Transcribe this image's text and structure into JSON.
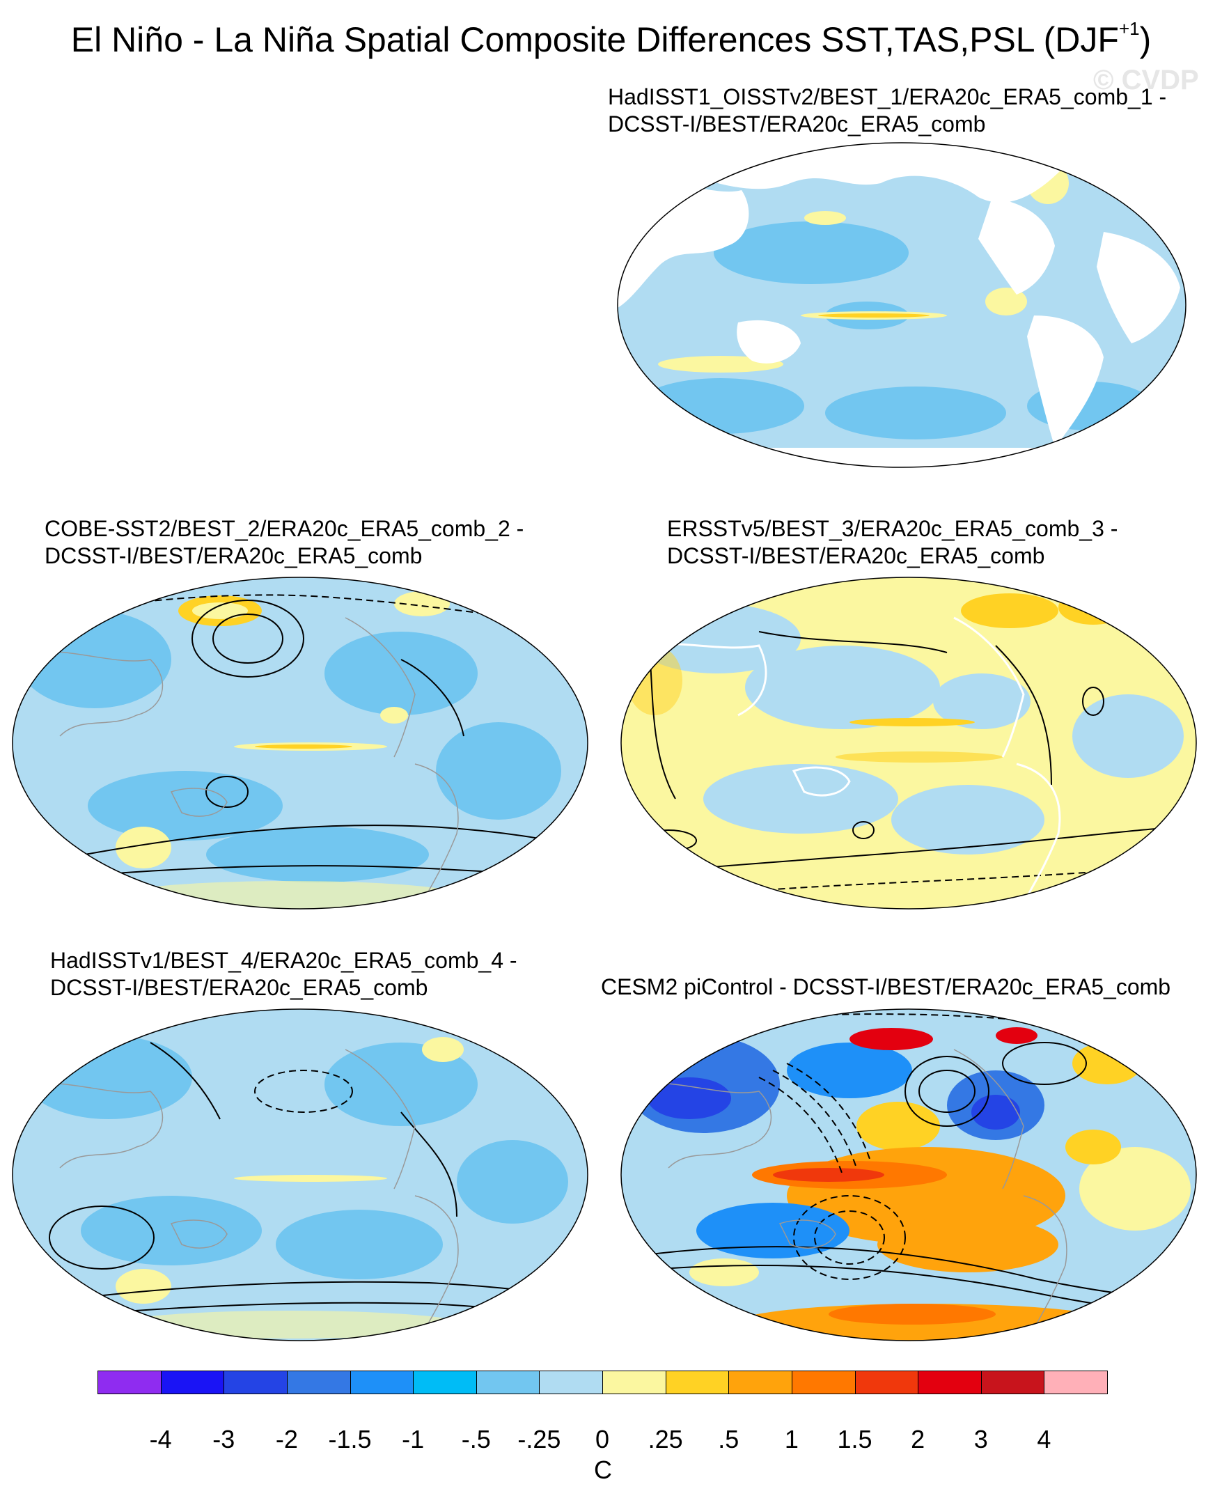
{
  "title": {
    "main": "El Niño - La Niña Spatial Composite Differences SST,TAS,PSL (DJF",
    "superscript": "+1",
    "close": ")"
  },
  "watermark": "© CVDP",
  "panels": [
    {
      "id": "p1",
      "title_line1": "HadISST1_OISSTv2/BEST_1/ERA20c_ERA5_comb_1 -",
      "title_line2": "DCSST-I/BEST/ERA20c_ERA5_comb",
      "field": "SST only (land masked)"
    },
    {
      "id": "p2",
      "title_line1": "COBE-SST2/BEST_2/ERA20c_ERA5_comb_2 -",
      "title_line2": "DCSST-I/BEST/ERA20c_ERA5_comb"
    },
    {
      "id": "p3",
      "title_line1": "ERSSTv5/BEST_3/ERA20c_ERA5_comb_3 -",
      "title_line2": "DCSST-I/BEST/ERA20c_ERA5_comb"
    },
    {
      "id": "p4",
      "title_line1": "HadISSTv1/BEST_4/ERA20c_ERA5_comb_4 -",
      "title_line2": "DCSST-I/BEST/ERA20c_ERA5_comb"
    },
    {
      "id": "p5",
      "title_line1": "CESM2 piControl - DCSST-I/BEST/ERA20c_ERA5_comb",
      "title_line2": ""
    }
  ],
  "colorbar": {
    "units": "C",
    "labels": [
      "-4",
      "-3",
      "-2",
      "-1.5",
      "-1",
      "-.5",
      "-.25",
      "0",
      ".25",
      ".5",
      "1",
      "1.5",
      "2",
      "3",
      "4"
    ],
    "colors": [
      "#8f2cf0",
      "#1a14f5",
      "#2444e5",
      "#3478e4",
      "#1e90f8",
      "#00bcf6",
      "#72c6f0",
      "#b0dcf2",
      "#fbf7a0",
      "#ffd224",
      "#ffa30c",
      "#ff7800",
      "#f0380c",
      "#e3000f",
      "#c8141c",
      "#ffb0b8"
    ]
  }
}
